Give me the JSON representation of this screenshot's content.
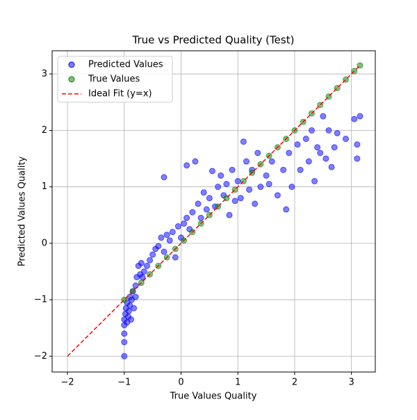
{
  "chart_data": {
    "type": "scatter",
    "title": "True vs Predicted Quality (Test)",
    "xlabel": "True Values Quality",
    "ylabel": "Predicted Values Quality",
    "xlim": [
      -2.27,
      3.42
    ],
    "ylim": [
      -2.28,
      3.41
    ],
    "xticks": [
      {
        "value": -2,
        "label": "−2"
      },
      {
        "value": -1,
        "label": "−1"
      },
      0,
      1,
      2,
      3
    ],
    "yticks": [
      {
        "value": -2,
        "label": "−2"
      },
      {
        "value": -1,
        "label": "−1"
      },
      0,
      1,
      2,
      3
    ],
    "grid": true,
    "legend": "upper left",
    "series": [
      {
        "name": "Predicted Values",
        "color": "#0000ff",
        "kind": "points",
        "x": [
          -1,
          -1,
          -1,
          -1,
          -1,
          -0.98,
          -0.97,
          -0.95,
          -0.95,
          -0.93,
          -0.92,
          -0.9,
          -0.9,
          -0.88,
          -0.87,
          -0.85,
          -0.83,
          -0.8,
          -0.8,
          -0.78,
          -0.75,
          -0.72,
          -0.7,
          -0.68,
          -0.65,
          -0.6,
          -0.55,
          -0.5,
          -0.45,
          -0.4,
          -0.35,
          -0.3,
          -0.3,
          -0.25,
          -0.2,
          -0.15,
          -0.1,
          -0.05,
          0,
          0.05,
          0.1,
          0.1,
          0.15,
          0.2,
          0.25,
          0.3,
          0.35,
          0.4,
          0.45,
          0.5,
          0.55,
          0.6,
          0.65,
          0.7,
          0.75,
          0.8,
          0.85,
          0.9,
          0.95,
          1.0,
          1.05,
          1.1,
          1.15,
          1.2,
          1.25,
          1.3,
          1.35,
          1.4,
          1.5,
          1.55,
          1.6,
          1.7,
          1.8,
          1.85,
          1.9,
          1.95,
          2.05,
          2.1,
          2.2,
          2.25,
          2.3,
          2.35,
          2.4,
          2.45,
          2.5,
          2.55,
          2.6,
          2.65,
          2.7,
          2.75,
          2.9,
          3.05,
          3.1,
          3.1,
          3.15
        ],
        "values": [
          -2,
          -1.75,
          -1.6,
          -1.45,
          -1.35,
          -1.25,
          -1.15,
          -1.05,
          -1.4,
          -1.3,
          -1.2,
          -1.1,
          -0.95,
          -1.35,
          -1.0,
          -0.85,
          -1.15,
          -0.75,
          -0.95,
          -0.6,
          -0.4,
          -0.55,
          -0.35,
          -0.6,
          -0.5,
          -0.4,
          -0.3,
          -0.2,
          -0.1,
          -0.05,
          0.1,
          1.17,
          -0.15,
          0.15,
          0.05,
          0.2,
          -0.25,
          0.3,
          0.1,
          0.35,
          0.45,
          1.38,
          0.25,
          0.55,
          1.45,
          0.7,
          0.45,
          0.9,
          0.6,
          0.8,
          1.28,
          0.65,
          1.0,
          1.2,
          0.85,
          1.05,
          0.5,
          1.3,
          0.75,
          1.1,
          0.8,
          1.8,
          1.45,
          0.95,
          1.3,
          0.7,
          1.6,
          1.0,
          1.2,
          1.05,
          1.45,
          0.85,
          1.3,
          0.6,
          1.6,
          1.0,
          1.75,
          1.3,
          1.85,
          1.45,
          2.0,
          1.1,
          1.7,
          1.6,
          2.25,
          1.5,
          2.0,
          1.35,
          1.7,
          1.95,
          1.85,
          2.2,
          1.75,
          1.5,
          2.25
        ]
      },
      {
        "name": "True Values",
        "color": "#008000",
        "kind": "points",
        "x": [
          -1,
          -0.85,
          -0.7,
          -0.55,
          -0.4,
          -0.25,
          -0.1,
          0.05,
          0.2,
          0.35,
          0.5,
          0.65,
          0.8,
          0.95,
          1.1,
          1.25,
          1.4,
          1.55,
          1.7,
          1.85,
          2.0,
          2.15,
          2.3,
          2.45,
          2.6,
          2.75,
          2.9,
          3.05,
          3.15
        ],
        "values": [
          -1,
          -0.85,
          -0.7,
          -0.55,
          -0.4,
          -0.25,
          -0.1,
          0.05,
          0.2,
          0.35,
          0.5,
          0.65,
          0.8,
          0.95,
          1.1,
          1.25,
          1.4,
          1.55,
          1.7,
          1.85,
          2.0,
          2.15,
          2.3,
          2.45,
          2.6,
          2.75,
          2.9,
          3.05,
          3.15
        ]
      },
      {
        "name": "Ideal Fit (y=x)",
        "color": "#ff0000",
        "kind": "dashed-line",
        "x": [
          -2,
          3.15
        ],
        "values": [
          -2,
          3.15
        ]
      }
    ]
  }
}
